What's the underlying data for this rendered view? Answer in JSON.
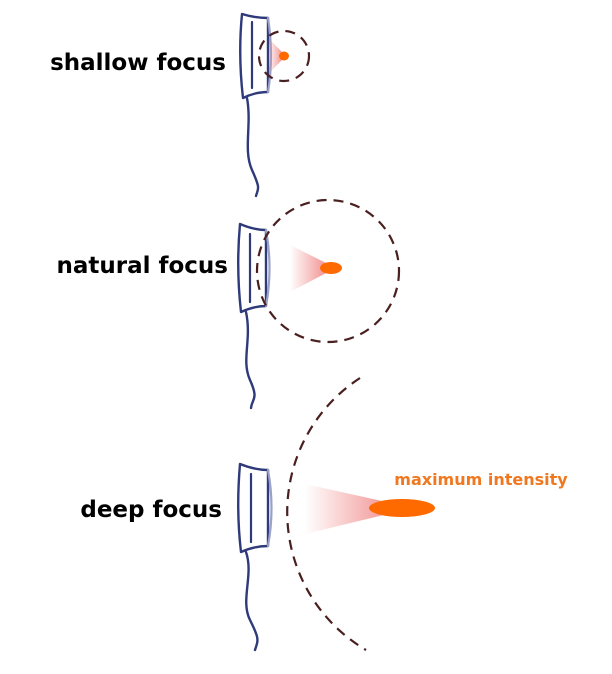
{
  "diagram": {
    "panels": [
      {
        "id": "shallow",
        "label": "shallow focus"
      },
      {
        "id": "natural",
        "label": "natural focus"
      },
      {
        "id": "deep",
        "label": "deep focus"
      }
    ],
    "peak_label": "maximum intensity",
    "colors": {
      "probe": "#2e3a7a",
      "probe_face": "#9aa0c8",
      "focal_spot": "#ff6a00",
      "beam_fade": "#f08080",
      "dashed_zone": "#4a1f1f",
      "peak_label": "#f07820",
      "label_text": "#000000"
    }
  }
}
